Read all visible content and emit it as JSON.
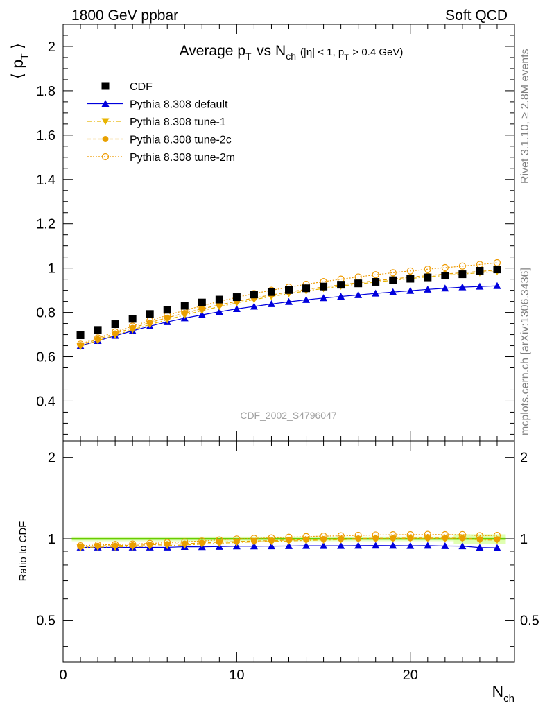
{
  "header": {
    "left": "1800 GeV ppbar",
    "right": "Soft QCD"
  },
  "side_labels": {
    "rivet": "Rivet 3.1.10, ≥ 2.8M events",
    "mcplots": "mcplots.cern.ch [arXiv:1306.3436]"
  },
  "chart_data": {
    "type": "scatter",
    "title": "Average p_T vs N_ch (|η| < 1, p_T > 0.4 GeV)",
    "watermark": "CDF_2002_S4796047",
    "xlabel": "N_ch",
    "ylabel": "⟨ p_T ⟩",
    "ratio_ylabel": "Ratio to CDF",
    "xlim": [
      0,
      26
    ],
    "ylim": [
      0.22,
      2.1
    ],
    "ratio_ylim": [
      0.35,
      2.3
    ],
    "x_ticks": [
      0,
      10,
      20
    ],
    "y_ticks": [
      0.4,
      0.6,
      0.8,
      1,
      1.2,
      1.4,
      1.6,
      1.8,
      2
    ],
    "y_tick_labels": [
      "0.4",
      "0.6",
      "0.8",
      "1",
      "1.2",
      "1.4",
      "1.6",
      "1.8",
      "2"
    ],
    "ratio_ticks": [
      0.5,
      1,
      2
    ],
    "ratio_tick_labels": [
      "0.5",
      "1",
      "2"
    ],
    "legend_position": "top-left",
    "x": [
      1,
      2,
      3,
      4,
      5,
      6,
      7,
      8,
      9,
      10,
      11,
      12,
      13,
      14,
      15,
      16,
      17,
      18,
      19,
      20,
      21,
      22,
      23,
      24,
      25
    ],
    "series": [
      {
        "name": "CDF",
        "color": "#000000",
        "marker": "square",
        "line": "none",
        "values": [
          0.697,
          0.721,
          0.747,
          0.771,
          0.793,
          0.812,
          0.83,
          0.845,
          0.858,
          0.869,
          0.881,
          0.892,
          0.901,
          0.909,
          0.917,
          0.925,
          0.931,
          0.938,
          0.945,
          0.952,
          0.958,
          0.966,
          0.972,
          0.988,
          0.994
        ],
        "ratio": [
          1,
          1,
          1,
          1,
          1,
          1,
          1,
          1,
          1,
          1,
          1,
          1,
          1,
          1,
          1,
          1,
          1,
          1,
          1,
          1,
          1,
          1,
          1,
          1,
          1
        ]
      },
      {
        "name": "Pythia 8.308 default",
        "color": "#0000dd",
        "marker": "triangle-up",
        "line": "solid",
        "values": [
          0.649,
          0.672,
          0.695,
          0.717,
          0.738,
          0.757,
          0.774,
          0.789,
          0.803,
          0.816,
          0.827,
          0.838,
          0.848,
          0.857,
          0.865,
          0.872,
          0.879,
          0.886,
          0.892,
          0.898,
          0.904,
          0.909,
          0.914,
          0.917,
          0.92
        ],
        "ratio": [
          0.93,
          0.93,
          0.93,
          0.93,
          0.93,
          0.93,
          0.935,
          0.934,
          0.936,
          0.939,
          0.939,
          0.94,
          0.941,
          0.943,
          0.943,
          0.943,
          0.944,
          0.945,
          0.944,
          0.943,
          0.944,
          0.941,
          0.94,
          0.928,
          0.926
        ]
      },
      {
        "name": "Pythia 8.308 tune-1",
        "color": "#e8b400",
        "marker": "triangle-down",
        "line": "dash-dot",
        "values": [
          0.647,
          0.673,
          0.698,
          0.722,
          0.745,
          0.767,
          0.788,
          0.808,
          0.826,
          0.843,
          0.858,
          0.872,
          0.885,
          0.897,
          0.908,
          0.919,
          0.928,
          0.937,
          0.945,
          0.953,
          0.96,
          0.967,
          0.973,
          0.979,
          0.984
        ],
        "ratio": [
          0.928,
          0.933,
          0.934,
          0.936,
          0.939,
          0.945,
          0.949,
          0.956,
          0.963,
          0.97,
          0.974,
          0.978,
          0.982,
          0.987,
          0.99,
          0.993,
          0.997,
          0.999,
          1.0,
          1.001,
          1.002,
          1.001,
          1.001,
          0.991,
          0.99
        ]
      },
      {
        "name": "Pythia 8.308 tune-2c",
        "color": "#e8a000",
        "marker": "circle",
        "line": "dashed",
        "values": [
          0.653,
          0.679,
          0.705,
          0.73,
          0.754,
          0.776,
          0.797,
          0.816,
          0.834,
          0.85,
          0.865,
          0.879,
          0.892,
          0.904,
          0.915,
          0.925,
          0.934,
          0.943,
          0.951,
          0.959,
          0.966,
          0.973,
          0.979,
          0.985,
          0.991
        ],
        "ratio": [
          0.937,
          0.942,
          0.944,
          0.947,
          0.951,
          0.956,
          0.96,
          0.966,
          0.972,
          0.978,
          0.982,
          0.985,
          0.99,
          0.994,
          0.998,
          1.0,
          1.003,
          1.005,
          1.006,
          1.007,
          1.008,
          1.007,
          1.007,
          0.997,
          0.997
        ]
      },
      {
        "name": "Pythia 8.308 tune-2m",
        "color": "#ee9a00",
        "marker": "circle-open",
        "line": "dotted",
        "values": [
          0.657,
          0.685,
          0.712,
          0.738,
          0.763,
          0.787,
          0.809,
          0.83,
          0.85,
          0.868,
          0.885,
          0.9,
          0.914,
          0.927,
          0.939,
          0.95,
          0.96,
          0.97,
          0.979,
          0.987,
          0.995,
          1.002,
          1.009,
          1.016,
          1.024
        ],
        "ratio": [
          0.943,
          0.95,
          0.953,
          0.957,
          0.962,
          0.969,
          0.975,
          0.982,
          0.991,
          0.999,
          1.005,
          1.009,
          1.014,
          1.02,
          1.024,
          1.027,
          1.031,
          1.034,
          1.036,
          1.037,
          1.039,
          1.037,
          1.038,
          1.028,
          1.03
        ]
      }
    ]
  }
}
